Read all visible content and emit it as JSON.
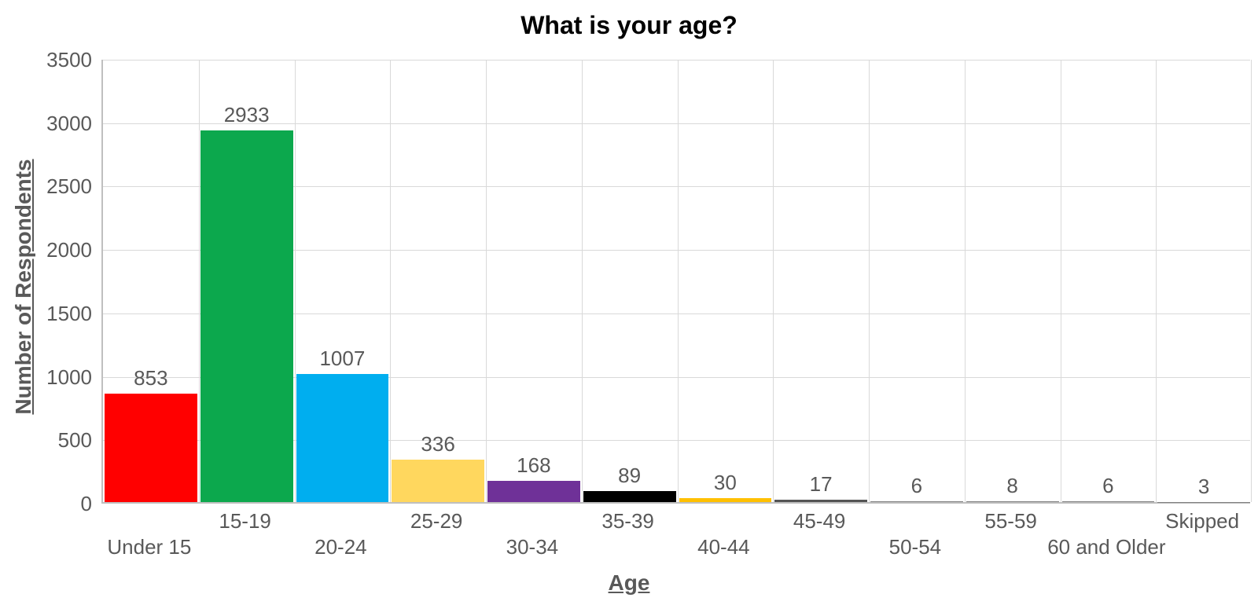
{
  "chart_data": {
    "type": "bar",
    "title": "What is your age?",
    "xlabel": "Age",
    "ylabel": "Number of Respondents",
    "categories": [
      "Under 15",
      "15-19",
      "20-24",
      "25-29",
      "30-34",
      "35-39",
      "40-44",
      "45-49",
      "50-54",
      "55-59",
      "60 and Older",
      "Skipped"
    ],
    "values": [
      853,
      2933,
      1007,
      336,
      168,
      89,
      30,
      17,
      6,
      8,
      6,
      3
    ],
    "bar_colors": [
      "#FF0000",
      "#0CA84D",
      "#00AEEF",
      "#FFD75E",
      "#6F3198",
      "#000000",
      "#FFC000",
      "#545454",
      "#808080",
      "#808080",
      "#808080",
      "#808080"
    ],
    "ylim": [
      0,
      3500
    ],
    "yticks": [
      0,
      500,
      1000,
      1500,
      2000,
      2500,
      3000,
      3500
    ],
    "grid": "both",
    "legend": "none",
    "data_labels": true,
    "colors": {
      "gridline": "#D9D9D9",
      "axis_line": "#BFBFBF",
      "tick_label": "#595959",
      "data_label": "#595959",
      "title": "#000000"
    }
  }
}
